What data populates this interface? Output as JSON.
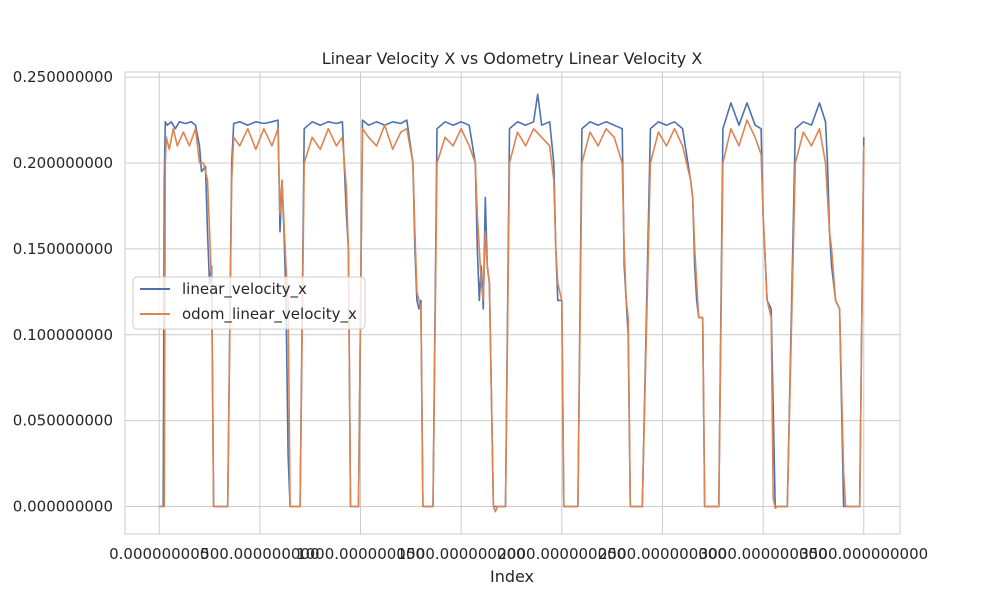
{
  "chart_data": {
    "type": "line",
    "title": "Linear Velocity X vs Odometry Linear Velocity X",
    "xlabel": "Index",
    "ylabel": "",
    "xlim": [
      -170,
      3680
    ],
    "ylim": [
      -0.016,
      0.253
    ],
    "x_ticks": [
      0,
      500,
      1000,
      1500,
      2000,
      2500,
      3000,
      3500
    ],
    "x_tick_labels": [
      "0.000000000",
      "500.000000000",
      "1000.000000000",
      "1500.000000000",
      "2000.000000000",
      "2500.000000000",
      "3000.000000000",
      "3500.000000000"
    ],
    "y_ticks": [
      0.0,
      0.05,
      0.1,
      0.15,
      0.2,
      0.25
    ],
    "y_tick_labels": [
      "0.000000000",
      "0.050000000",
      "0.100000000",
      "0.150000000",
      "0.200000000",
      "0.250000000"
    ],
    "grid": true,
    "legend_position": "center-left",
    "series": [
      {
        "name": "linear_velocity_x",
        "color": "#4c72b0",
        "points": [
          [
            0,
            0
          ],
          [
            20,
            0
          ],
          [
            25,
            0.19
          ],
          [
            30,
            0.224
          ],
          [
            40,
            0.222
          ],
          [
            60,
            0.224
          ],
          [
            80,
            0.22
          ],
          [
            100,
            0.224
          ],
          [
            130,
            0.223
          ],
          [
            160,
            0.224
          ],
          [
            180,
            0.222
          ],
          [
            200,
            0.21
          ],
          [
            210,
            0.195
          ],
          [
            230,
            0.198
          ],
          [
            240,
            0.16
          ],
          [
            250,
            0.13
          ],
          [
            260,
            0.14
          ],
          [
            270,
            0.0
          ],
          [
            280,
            0.0
          ],
          [
            300,
            0.0
          ],
          [
            340,
            0.0
          ],
          [
            360,
            0.2
          ],
          [
            370,
            0.223
          ],
          [
            400,
            0.224
          ],
          [
            440,
            0.222
          ],
          [
            480,
            0.224
          ],
          [
            520,
            0.223
          ],
          [
            560,
            0.224
          ],
          [
            590,
            0.225
          ],
          [
            600,
            0.16
          ],
          [
            610,
            0.19
          ],
          [
            620,
            0.16
          ],
          [
            630,
            0.12
          ],
          [
            640,
            0.03
          ],
          [
            650,
            0.0
          ],
          [
            680,
            0.0
          ],
          [
            700,
            0.0
          ],
          [
            720,
            0.22
          ],
          [
            760,
            0.224
          ],
          [
            800,
            0.222
          ],
          [
            840,
            0.224
          ],
          [
            880,
            0.223
          ],
          [
            910,
            0.224
          ],
          [
            930,
            0.17
          ],
          [
            940,
            0.15
          ],
          [
            950,
            0.0
          ],
          [
            970,
            0.0
          ],
          [
            990,
            0.0
          ],
          [
            1010,
            0.225
          ],
          [
            1040,
            0.222
          ],
          [
            1080,
            0.224
          ],
          [
            1120,
            0.222
          ],
          [
            1160,
            0.224
          ],
          [
            1200,
            0.223
          ],
          [
            1230,
            0.225
          ],
          [
            1260,
            0.2
          ],
          [
            1270,
            0.15
          ],
          [
            1280,
            0.12
          ],
          [
            1290,
            0.115
          ],
          [
            1300,
            0.12
          ],
          [
            1310,
            0.0
          ],
          [
            1330,
            0.0
          ],
          [
            1360,
            0.0
          ],
          [
            1380,
            0.22
          ],
          [
            1420,
            0.224
          ],
          [
            1460,
            0.222
          ],
          [
            1500,
            0.224
          ],
          [
            1540,
            0.222
          ],
          [
            1570,
            0.2
          ],
          [
            1580,
            0.15
          ],
          [
            1590,
            0.12
          ],
          [
            1600,
            0.14
          ],
          [
            1610,
            0.115
          ],
          [
            1620,
            0.18
          ],
          [
            1630,
            0.14
          ],
          [
            1640,
            0.13
          ],
          [
            1660,
            0.0
          ],
          [
            1680,
            0.0
          ],
          [
            1720,
            0.0
          ],
          [
            1740,
            0.22
          ],
          [
            1780,
            0.224
          ],
          [
            1820,
            0.222
          ],
          [
            1860,
            0.224
          ],
          [
            1880,
            0.24
          ],
          [
            1900,
            0.222
          ],
          [
            1940,
            0.224
          ],
          [
            1960,
            0.2
          ],
          [
            1970,
            0.15
          ],
          [
            1980,
            0.12
          ],
          [
            2000,
            0.12
          ],
          [
            2010,
            0.0
          ],
          [
            2030,
            0.0
          ],
          [
            2080,
            0.0
          ],
          [
            2100,
            0.22
          ],
          [
            2140,
            0.224
          ],
          [
            2180,
            0.222
          ],
          [
            2220,
            0.224
          ],
          [
            2260,
            0.222
          ],
          [
            2300,
            0.22
          ],
          [
            2310,
            0.14
          ],
          [
            2320,
            0.12
          ],
          [
            2330,
            0.1
          ],
          [
            2340,
            0.0
          ],
          [
            2360,
            0.0
          ],
          [
            2400,
            0.0
          ],
          [
            2440,
            0.22
          ],
          [
            2480,
            0.224
          ],
          [
            2520,
            0.222
          ],
          [
            2560,
            0.224
          ],
          [
            2600,
            0.22
          ],
          [
            2640,
            0.19
          ],
          [
            2650,
            0.18
          ],
          [
            2660,
            0.14
          ],
          [
            2670,
            0.12
          ],
          [
            2680,
            0.11
          ],
          [
            2700,
            0.11
          ],
          [
            2710,
            0.0
          ],
          [
            2740,
            0.0
          ],
          [
            2780,
            0.0
          ],
          [
            2800,
            0.22
          ],
          [
            2840,
            0.235
          ],
          [
            2880,
            0.222
          ],
          [
            2920,
            0.235
          ],
          [
            2960,
            0.222
          ],
          [
            2990,
            0.22
          ],
          [
            3000,
            0.17
          ],
          [
            3020,
            0.12
          ],
          [
            3040,
            0.115
          ],
          [
            3060,
            0.0
          ],
          [
            3080,
            0.0
          ],
          [
            3120,
            0.0
          ],
          [
            3160,
            0.22
          ],
          [
            3200,
            0.224
          ],
          [
            3240,
            0.222
          ],
          [
            3280,
            0.235
          ],
          [
            3310,
            0.224
          ],
          [
            3320,
            0.2
          ],
          [
            3330,
            0.16
          ],
          [
            3340,
            0.14
          ],
          [
            3360,
            0.12
          ],
          [
            3380,
            0.115
          ],
          [
            3400,
            0.0
          ],
          [
            3420,
            0.0
          ],
          [
            3460,
            0.0
          ],
          [
            3480,
            0.0
          ],
          [
            3500,
            0.215
          ]
        ]
      },
      {
        "name": "odom_linear_velocity_x",
        "color": "#dd8452",
        "points": [
          [
            0,
            0
          ],
          [
            25,
            0
          ],
          [
            30,
            0.2
          ],
          [
            35,
            0.215
          ],
          [
            50,
            0.208
          ],
          [
            70,
            0.22
          ],
          [
            90,
            0.21
          ],
          [
            120,
            0.218
          ],
          [
            150,
            0.21
          ],
          [
            180,
            0.22
          ],
          [
            200,
            0.2
          ],
          [
            220,
            0.2
          ],
          [
            240,
            0.19
          ],
          [
            260,
            0.13
          ],
          [
            270,
            0.0
          ],
          [
            280,
            0.0
          ],
          [
            340,
            0.0
          ],
          [
            360,
            0.19
          ],
          [
            370,
            0.215
          ],
          [
            400,
            0.21
          ],
          [
            440,
            0.22
          ],
          [
            480,
            0.208
          ],
          [
            520,
            0.22
          ],
          [
            560,
            0.21
          ],
          [
            590,
            0.22
          ],
          [
            600,
            0.17
          ],
          [
            610,
            0.19
          ],
          [
            630,
            0.14
          ],
          [
            640,
            0.12
          ],
          [
            650,
            0.0
          ],
          [
            700,
            0.0
          ],
          [
            720,
            0.2
          ],
          [
            760,
            0.215
          ],
          [
            800,
            0.208
          ],
          [
            840,
            0.22
          ],
          [
            880,
            0.21
          ],
          [
            910,
            0.215
          ],
          [
            930,
            0.185
          ],
          [
            940,
            0.15
          ],
          [
            950,
            0.0
          ],
          [
            990,
            0.0
          ],
          [
            1010,
            0.22
          ],
          [
            1040,
            0.215
          ],
          [
            1080,
            0.21
          ],
          [
            1120,
            0.222
          ],
          [
            1160,
            0.208
          ],
          [
            1200,
            0.218
          ],
          [
            1230,
            0.22
          ],
          [
            1260,
            0.2
          ],
          [
            1270,
            0.16
          ],
          [
            1280,
            0.125
          ],
          [
            1290,
            0.12
          ],
          [
            1300,
            0.115
          ],
          [
            1310,
            0.0
          ],
          [
            1360,
            0.0
          ],
          [
            1380,
            0.2
          ],
          [
            1420,
            0.215
          ],
          [
            1460,
            0.21
          ],
          [
            1500,
            0.22
          ],
          [
            1540,
            0.21
          ],
          [
            1570,
            0.2
          ],
          [
            1580,
            0.17
          ],
          [
            1590,
            0.15
          ],
          [
            1600,
            0.13
          ],
          [
            1610,
            0.12
          ],
          [
            1620,
            0.16
          ],
          [
            1630,
            0.14
          ],
          [
            1640,
            0.13
          ],
          [
            1660,
            0.0
          ],
          [
            1670,
            -0.003
          ],
          [
            1680,
            0.0
          ],
          [
            1720,
            0.0
          ],
          [
            1740,
            0.2
          ],
          [
            1780,
            0.218
          ],
          [
            1820,
            0.21
          ],
          [
            1860,
            0.22
          ],
          [
            1900,
            0.215
          ],
          [
            1940,
            0.21
          ],
          [
            1960,
            0.19
          ],
          [
            1970,
            0.15
          ],
          [
            1980,
            0.13
          ],
          [
            2000,
            0.12
          ],
          [
            2010,
            0.0
          ],
          [
            2080,
            0.0
          ],
          [
            2100,
            0.2
          ],
          [
            2140,
            0.218
          ],
          [
            2180,
            0.21
          ],
          [
            2220,
            0.22
          ],
          [
            2260,
            0.215
          ],
          [
            2300,
            0.2
          ],
          [
            2310,
            0.15
          ],
          [
            2320,
            0.12
          ],
          [
            2330,
            0.11
          ],
          [
            2340,
            0.0
          ],
          [
            2400,
            0.0
          ],
          [
            2440,
            0.2
          ],
          [
            2480,
            0.218
          ],
          [
            2520,
            0.21
          ],
          [
            2560,
            0.22
          ],
          [
            2600,
            0.21
          ],
          [
            2640,
            0.19
          ],
          [
            2650,
            0.18
          ],
          [
            2660,
            0.15
          ],
          [
            2670,
            0.13
          ],
          [
            2680,
            0.11
          ],
          [
            2700,
            0.11
          ],
          [
            2710,
            0.0
          ],
          [
            2780,
            0.0
          ],
          [
            2800,
            0.2
          ],
          [
            2840,
            0.22
          ],
          [
            2880,
            0.21
          ],
          [
            2920,
            0.225
          ],
          [
            2960,
            0.215
          ],
          [
            2990,
            0.205
          ],
          [
            3000,
            0.17
          ],
          [
            3020,
            0.12
          ],
          [
            3040,
            0.11
          ],
          [
            3050,
            0.005
          ],
          [
            3060,
            -0.001
          ],
          [
            3070,
            0.0
          ],
          [
            3120,
            0.0
          ],
          [
            3160,
            0.2
          ],
          [
            3200,
            0.218
          ],
          [
            3240,
            0.21
          ],
          [
            3280,
            0.22
          ],
          [
            3310,
            0.2
          ],
          [
            3320,
            0.18
          ],
          [
            3330,
            0.16
          ],
          [
            3340,
            0.15
          ],
          [
            3360,
            0.12
          ],
          [
            3380,
            0.115
          ],
          [
            3400,
            0.02
          ],
          [
            3410,
            0.0
          ],
          [
            3460,
            0.0
          ],
          [
            3480,
            0.0
          ],
          [
            3500,
            0.21
          ]
        ]
      }
    ]
  }
}
